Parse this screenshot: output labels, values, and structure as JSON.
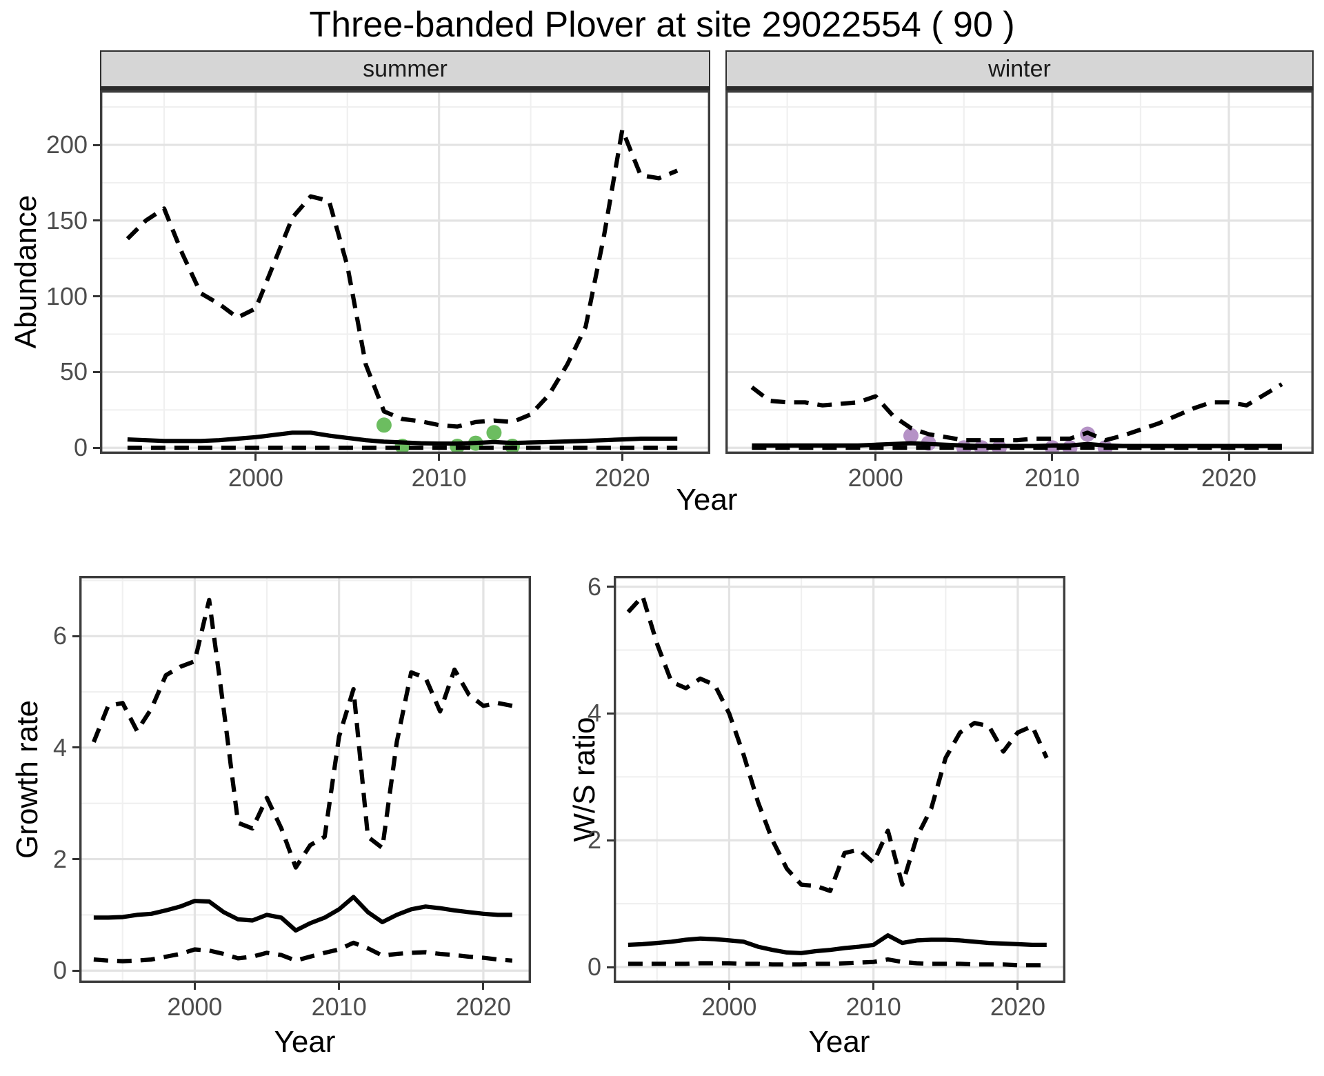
{
  "title": "Three-banded Plover at site 29022554 ( 90 )",
  "top_row": {
    "ylabel": "Abundance",
    "xlabel": "Year"
  },
  "bottom_row": {
    "xlabel": "Year"
  },
  "colors": {
    "line": "#000000",
    "point_summer": "#6cbd60",
    "point_winter": "#b592c6",
    "strip_bg": "#d6d6d6",
    "grid_major": "#e3e3e3",
    "grid_minor": "#f0f0f0",
    "panel_border": "#3d3d3d",
    "tick_mark": "#333333",
    "tick_text": "#4d4d4d"
  },
  "chart_data": [
    {
      "key": "summer",
      "type": "line",
      "facet_label": "summer",
      "ylabel": "Abundance",
      "xlabel": "Year",
      "xlim": [
        1991.5,
        2024.8
      ],
      "ylim": [
        -4,
        236
      ],
      "xticks": [
        2000,
        2010,
        2020
      ],
      "yticks": [
        0,
        50,
        100,
        150,
        200
      ],
      "xminor": [
        1995,
        2005,
        2015
      ],
      "yminor": [
        25,
        75,
        125,
        175,
        225
      ],
      "x": [
        1993,
        1994,
        1995,
        1996,
        1997,
        1998,
        1999,
        2000,
        2001,
        2002,
        2003,
        2004,
        2005,
        2006,
        2007,
        2008,
        2009,
        2010,
        2011,
        2012,
        2013,
        2014,
        2015,
        2016,
        2017,
        2018,
        2019,
        2020,
        2021,
        2022,
        2023
      ],
      "series": [
        {
          "name": "upper_ci",
          "style": "dashed",
          "values": [
            138,
            150,
            158,
            128,
            102,
            95,
            86,
            92,
            122,
            152,
            166,
            163,
            120,
            55,
            24,
            19,
            17.5,
            15,
            14,
            17,
            18,
            17,
            22,
            35,
            55,
            80,
            140,
            210,
            180,
            178,
            183
          ]
        },
        {
          "name": "median",
          "style": "solid",
          "values": [
            5.5,
            5,
            4.5,
            4.5,
            4.5,
            5,
            6,
            7,
            8.5,
            10,
            10,
            8,
            6.5,
            5,
            4,
            3.5,
            3,
            2.8,
            2.8,
            3.2,
            3.8,
            3.2,
            3.5,
            3.8,
            4.2,
            4.6,
            5,
            5.5,
            6,
            6,
            6
          ]
        },
        {
          "name": "lower_ci",
          "style": "dashed",
          "values": [
            0,
            0,
            0,
            0,
            0,
            0,
            0,
            0,
            0,
            0,
            0,
            0,
            0,
            0,
            0,
            0,
            0,
            0,
            0,
            0,
            0,
            0,
            0,
            0,
            0,
            0,
            0,
            0,
            0,
            0,
            0
          ]
        }
      ],
      "points": {
        "name": "observed-counts",
        "color": "#6cbd60",
        "data": [
          [
            2007,
            15
          ],
          [
            2008,
            1
          ],
          [
            2011,
            1
          ],
          [
            2012,
            3
          ],
          [
            2013,
            10
          ],
          [
            2014,
            1
          ]
        ]
      }
    },
    {
      "key": "winter",
      "type": "line",
      "facet_label": "winter",
      "ylabel": "Abundance",
      "xlabel": "Year",
      "xlim": [
        1991.5,
        2024.8
      ],
      "ylim": [
        -4,
        236
      ],
      "xticks": [
        2000,
        2010,
        2020
      ],
      "yticks": [
        0,
        50,
        100,
        150,
        200
      ],
      "xminor": [
        1995,
        2005,
        2015
      ],
      "yminor": [
        25,
        75,
        125,
        175,
        225
      ],
      "x": [
        1993,
        1994,
        1995,
        1996,
        1997,
        1998,
        1999,
        2000,
        2001,
        2002,
        2003,
        2004,
        2005,
        2006,
        2007,
        2008,
        2009,
        2010,
        2011,
        2012,
        2013,
        2014,
        2015,
        2016,
        2017,
        2018,
        2019,
        2020,
        2021,
        2022,
        2023
      ],
      "series": [
        {
          "name": "upper_ci",
          "style": "dashed",
          "values": [
            40,
            31,
            30,
            30,
            28,
            29,
            30,
            34,
            21,
            13,
            9,
            7,
            5,
            5,
            5,
            5,
            6,
            6,
            6,
            10,
            5,
            8,
            12,
            16,
            21,
            26,
            30,
            30,
            28,
            35,
            42
          ]
        },
        {
          "name": "median",
          "style": "solid",
          "values": [
            1.5,
            1.5,
            1.5,
            1.5,
            1.5,
            1.5,
            1.5,
            2,
            2.5,
            3,
            2.5,
            2,
            1.5,
            1.2,
            1.2,
            1.2,
            1.2,
            1.5,
            1.5,
            2.5,
            1.5,
            1.2,
            1.2,
            1.2,
            1.2,
            1.2,
            1.2,
            1.2,
            1.2,
            1.2,
            1.2
          ]
        },
        {
          "name": "lower_ci",
          "style": "dashed",
          "values": [
            0,
            0,
            0,
            0,
            0,
            0,
            0,
            0,
            0,
            0,
            0,
            0,
            0,
            0,
            0,
            0,
            0,
            0,
            0,
            0,
            0,
            0,
            0,
            0,
            0,
            0,
            0,
            0,
            0,
            0,
            0
          ]
        }
      ],
      "points": {
        "name": "observed-counts",
        "color": "#b592c6",
        "data": [
          [
            2002,
            8
          ],
          [
            2003,
            3
          ],
          [
            2005,
            0
          ],
          [
            2006,
            0
          ],
          [
            2007,
            0
          ],
          [
            2010,
            0
          ],
          [
            2011,
            0
          ],
          [
            2012,
            9
          ],
          [
            2013,
            0
          ]
        ]
      }
    },
    {
      "key": "growth",
      "type": "line",
      "facet_label": "",
      "ylabel": "Growth rate",
      "xlabel": "Year",
      "xlim": [
        1992,
        2023.3
      ],
      "ylim": [
        -0.22,
        7.08
      ],
      "xticks": [
        2000,
        2010,
        2020
      ],
      "yticks": [
        0,
        2,
        4,
        6
      ],
      "xminor": [
        1995,
        2005,
        2015
      ],
      "yminor": [
        1,
        3,
        5,
        7
      ],
      "x": [
        1993,
        1994,
        1995,
        1996,
        1997,
        1998,
        1999,
        2000,
        2001,
        2002,
        2003,
        2004,
        2005,
        2006,
        2007,
        2008,
        2009,
        2010,
        2011,
        2012,
        2013,
        2014,
        2015,
        2016,
        2017,
        2018,
        2019,
        2020,
        2021,
        2022
      ],
      "series": [
        {
          "name": "upper_ci",
          "style": "dashed",
          "values": [
            4.1,
            4.75,
            4.8,
            4.3,
            4.7,
            5.3,
            5.45,
            5.55,
            6.65,
            4.7,
            2.65,
            2.55,
            3.1,
            2.55,
            1.85,
            2.25,
            2.4,
            4.2,
            5.05,
            2.4,
            2.2,
            4.1,
            5.35,
            5.25,
            4.65,
            5.4,
            4.95,
            4.75,
            4.8,
            4.75
          ]
        },
        {
          "name": "median",
          "style": "solid",
          "values": [
            0.95,
            0.95,
            0.96,
            1.0,
            1.02,
            1.08,
            1.15,
            1.25,
            1.24,
            1.05,
            0.92,
            0.9,
            1.0,
            0.95,
            0.72,
            0.85,
            0.95,
            1.1,
            1.32,
            1.05,
            0.87,
            1.0,
            1.1,
            1.15,
            1.12,
            1.08,
            1.05,
            1.02,
            1.0,
            1.0
          ]
        },
        {
          "name": "lower_ci",
          "style": "dashed",
          "values": [
            0.2,
            0.18,
            0.17,
            0.18,
            0.2,
            0.25,
            0.3,
            0.38,
            0.36,
            0.3,
            0.22,
            0.25,
            0.32,
            0.28,
            0.18,
            0.25,
            0.32,
            0.38,
            0.5,
            0.4,
            0.27,
            0.3,
            0.32,
            0.33,
            0.3,
            0.28,
            0.25,
            0.23,
            0.2,
            0.18
          ]
        }
      ],
      "points": null
    },
    {
      "key": "ws",
      "type": "line",
      "facet_label": "",
      "ylabel": "W/S ratio",
      "xlabel": "Year",
      "xlim": [
        1992,
        2023.3
      ],
      "ylim": [
        -0.25,
        6.17
      ],
      "xticks": [
        2000,
        2010,
        2020
      ],
      "yticks": [
        0,
        2,
        4,
        6
      ],
      "xminor": [
        1995,
        2005,
        2015
      ],
      "yminor": [
        1,
        3,
        5
      ],
      "x": [
        1993,
        1994,
        1995,
        1996,
        1997,
        1998,
        1999,
        2000,
        2001,
        2002,
        2003,
        2004,
        2005,
        2006,
        2007,
        2008,
        2009,
        2010,
        2011,
        2012,
        2013,
        2014,
        2015,
        2016,
        2017,
        2018,
        2019,
        2020,
        2021,
        2022
      ],
      "series": [
        {
          "name": "upper_ci",
          "style": "dashed",
          "values": [
            5.6,
            5.85,
            5.1,
            4.5,
            4.4,
            4.55,
            4.45,
            4.0,
            3.35,
            2.6,
            2.0,
            1.55,
            1.3,
            1.28,
            1.2,
            1.8,
            1.85,
            1.65,
            2.15,
            1.3,
            2.05,
            2.5,
            3.3,
            3.7,
            3.85,
            3.8,
            3.4,
            3.7,
            3.8,
            3.3
          ]
        },
        {
          "name": "median",
          "style": "solid",
          "values": [
            0.35,
            0.36,
            0.38,
            0.4,
            0.43,
            0.45,
            0.44,
            0.42,
            0.4,
            0.32,
            0.27,
            0.23,
            0.22,
            0.25,
            0.27,
            0.3,
            0.32,
            0.35,
            0.5,
            0.38,
            0.42,
            0.43,
            0.43,
            0.42,
            0.4,
            0.38,
            0.37,
            0.36,
            0.35,
            0.35
          ]
        },
        {
          "name": "lower_ci",
          "style": "dashed",
          "values": [
            0.05,
            0.05,
            0.05,
            0.05,
            0.05,
            0.06,
            0.06,
            0.06,
            0.05,
            0.05,
            0.04,
            0.04,
            0.04,
            0.05,
            0.05,
            0.06,
            0.07,
            0.08,
            0.12,
            0.08,
            0.06,
            0.05,
            0.05,
            0.05,
            0.04,
            0.04,
            0.04,
            0.03,
            0.03,
            0.03
          ]
        }
      ],
      "points": null
    }
  ]
}
